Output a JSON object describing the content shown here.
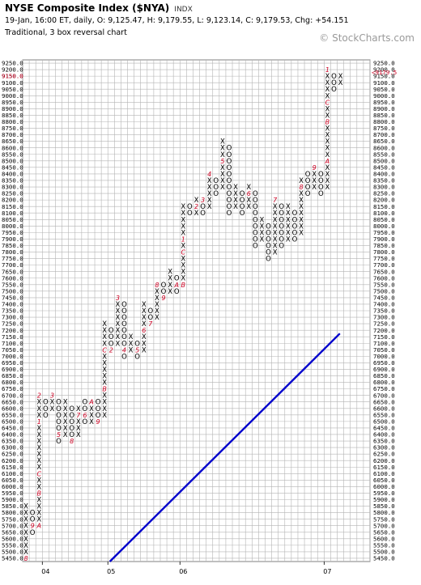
{
  "header": {
    "title": "NYSE Composite Index ($NYA)",
    "ticker": "INDX",
    "quote": "19-Jan, 16:00 ET, daily, O: 9,125.47, H: 9,179.55, L: 9,123.14, C: 9,179.53, Chg: +54.151",
    "chart_type": "Traditional, 3 box reversal chart",
    "brand": "© StockCharts.com"
  },
  "colors": {
    "grid": "#b4b4b4",
    "x_mark": "#000000",
    "o_mark": "#000000",
    "month_mark": "#cc0022",
    "trendline": "#0000cc",
    "last_price": "#cc0022"
  },
  "chart_data": {
    "type": "point-and-figure",
    "box_size": 50,
    "reversal": 3,
    "ylim": [
      5425,
      9275
    ],
    "y_ticks": [
      5450,
      5500,
      5550,
      5600,
      5650,
      5700,
      5750,
      5800,
      5850,
      5900,
      5950,
      6000,
      6050,
      6100,
      6150,
      6200,
      6250,
      6300,
      6350,
      6400,
      6450,
      6500,
      6550,
      6600,
      6650,
      6700,
      6750,
      6800,
      6850,
      6900,
      6950,
      7000,
      7050,
      7100,
      7150,
      7200,
      7250,
      7300,
      7350,
      7400,
      7450,
      7500,
      7550,
      7600,
      7650,
      7700,
      7750,
      7800,
      7850,
      7900,
      7950,
      8000,
      8050,
      8100,
      8150,
      8200,
      8250,
      8300,
      8350,
      8400,
      8450,
      8500,
      8550,
      8600,
      8650,
      8700,
      8750,
      8800,
      8850,
      8900,
      8950,
      9000,
      9050,
      9100,
      9150,
      9200,
      9250
    ],
    "y_tick_labels": [
      "5450.0",
      "5500.0",
      "5550.0",
      "5600.0",
      "5650.0",
      "5700.0",
      "5750.0",
      "5800.0",
      "5850.0",
      "5900.0",
      "5950.0",
      "6000.0",
      "6050.0",
      "6100.0",
      "6150.0",
      "6200.0",
      "6250.0",
      "6300.0",
      "6350.0",
      "6400.0",
      "6450.0",
      "6500.0",
      "6550.0",
      "6600.0",
      "6650.0",
      "6700.0",
      "6750.0",
      "6800.0",
      "6850.0",
      "6900.0",
      "6950.0",
      "7000.0",
      "7050.0",
      "7100.0",
      "7150.0",
      "7200.0",
      "7250.0",
      "7300.0",
      "7350.0",
      "7400.0",
      "7450.0",
      "7500.0",
      "7550.0",
      "7600.0",
      "7650.0",
      "7700.0",
      "7750.0",
      "7800.0",
      "7850.0",
      "7900.0",
      "7950.0",
      "8000.0",
      "8050.0",
      "8100.0",
      "8150.0",
      "8200.0",
      "8250.0",
      "8300.0",
      "8350.0",
      "8400.0",
      "8450.0",
      "8500.0",
      "8550.0",
      "8600.0",
      "8650.0",
      "8700.0",
      "8750.0",
      "8800.0",
      "8850.0",
      "8900.0",
      "8950.0",
      "9000.0",
      "9050.0",
      "9100.0",
      "9150.0",
      "9200.0",
      "9250.0"
    ],
    "x_labels": [
      {
        "label": "04",
        "column": 3
      },
      {
        "label": "05",
        "column": 13
      },
      {
        "label": "06",
        "column": 24
      },
      {
        "label": "07",
        "column": 46
      }
    ],
    "last_price": 9179.5,
    "last_price_label": "<9179.5",
    "left_price_label": "9150.0",
    "columns": [
      {
        "type": "X",
        "from": 5450,
        "to": 5850,
        "months": {
          "5450": "8"
        }
      },
      {
        "type": "O",
        "from": 5650,
        "to": 5800,
        "months": {
          "5700": "9"
        }
      },
      {
        "type": "X",
        "from": 5700,
        "to": 6700,
        "months": {
          "5700": "A",
          "5950": "B",
          "6100": "C",
          "6500": "1",
          "6700": "2"
        }
      },
      {
        "type": "O",
        "from": 6550,
        "to": 6650
      },
      {
        "type": "X",
        "from": 6600,
        "to": 6700,
        "months": {
          "6700": "3"
        }
      },
      {
        "type": "O",
        "from": 6350,
        "to": 6650,
        "months": {
          "6400": "5"
        }
      },
      {
        "type": "X",
        "from": 6400,
        "to": 6650
      },
      {
        "type": "O",
        "from": 6350,
        "to": 6600,
        "months": {
          "6350": "8"
        }
      },
      {
        "type": "X",
        "from": 6400,
        "to": 6600,
        "months": {
          "6550": "7"
        }
      },
      {
        "type": "O",
        "from": 6500,
        "to": 6650,
        "months": {
          "6550": "6"
        }
      },
      {
        "type": "X",
        "from": 6500,
        "to": 6650,
        "months": {
          "6650": "A"
        }
      },
      {
        "type": "O",
        "from": 6500,
        "to": 6650,
        "months": {
          "6500": "9"
        }
      },
      {
        "type": "X",
        "from": 6550,
        "to": 7250,
        "months": {
          "6750": "B",
          "7050": "C"
        }
      },
      {
        "type": "O",
        "from": 7050,
        "to": 7200,
        "months": {
          "7050": "2"
        }
      },
      {
        "type": "X",
        "from": 7100,
        "to": 7450,
        "months": {
          "7450": "3"
        }
      },
      {
        "type": "O",
        "from": 7000,
        "to": 7400,
        "months": {
          "7050": "4"
        }
      },
      {
        "type": "X",
        "from": 7050,
        "to": 7150
      },
      {
        "type": "O",
        "from": 7000,
        "to": 7100,
        "months": {
          "7050": "5"
        }
      },
      {
        "type": "X",
        "from": 7050,
        "to": 7400,
        "months": {
          "7200": "6"
        }
      },
      {
        "type": "O",
        "from": 7250,
        "to": 7350,
        "months": {
          "7250": "7"
        }
      },
      {
        "type": "X",
        "from": 7300,
        "to": 7550,
        "months": {
          "7550": "8"
        }
      },
      {
        "type": "O",
        "from": 7450,
        "to": 7550,
        "months": {
          "7450": "9"
        }
      },
      {
        "type": "X",
        "from": 7500,
        "to": 7650
      },
      {
        "type": "O",
        "from": 7500,
        "to": 7600,
        "months": {
          "7550": "A"
        }
      },
      {
        "type": "X",
        "from": 7550,
        "to": 8150,
        "months": {
          "7550": "B",
          "7800": "C",
          "7900": "1"
        }
      },
      {
        "type": "O",
        "from": 8100,
        "to": 8150
      },
      {
        "type": "X",
        "from": 8100,
        "to": 8200,
        "months": {
          "8150": "2"
        }
      },
      {
        "type": "O",
        "from": 8100,
        "to": 8200,
        "months": {
          "8200": "3"
        }
      },
      {
        "type": "X",
        "from": 8150,
        "to": 8400,
        "months": {
          "8400": "4"
        }
      },
      {
        "type": "O",
        "from": 8250,
        "to": 8350
      },
      {
        "type": "X",
        "from": 8300,
        "to": 8650,
        "months": {
          "8500": "5"
        }
      },
      {
        "type": "O",
        "from": 8100,
        "to": 8600
      },
      {
        "type": "X",
        "from": 8150,
        "to": 8300
      },
      {
        "type": "O",
        "from": 8100,
        "to": 8250
      },
      {
        "type": "X",
        "from": 8150,
        "to": 8300,
        "months": {
          "8250": "6"
        }
      },
      {
        "type": "O",
        "from": 7850,
        "to": 8250
      },
      {
        "type": "X",
        "from": 7900,
        "to": 8050
      },
      {
        "type": "O",
        "from": 7750,
        "to": 8000
      },
      {
        "type": "X",
        "from": 7800,
        "to": 8200,
        "months": {
          "8200": "7"
        }
      },
      {
        "type": "O",
        "from": 7850,
        "to": 8150
      },
      {
        "type": "X",
        "from": 7900,
        "to": 8150
      },
      {
        "type": "O",
        "from": 7900,
        "to": 8100
      },
      {
        "type": "X",
        "from": 7950,
        "to": 8350,
        "months": {
          "8300": "8"
        }
      },
      {
        "type": "O",
        "from": 8250,
        "to": 8400
      },
      {
        "type": "X",
        "from": 8300,
        "to": 8450,
        "months": {
          "8450": "9"
        }
      },
      {
        "type": "O",
        "from": 8250,
        "to": 8400
      },
      {
        "type": "X",
        "from": 8300,
        "to": 9200,
        "months": {
          "8500": "A",
          "8800": "B",
          "8950": "C",
          "9200": "1"
        }
      },
      {
        "type": "O",
        "from": 9050,
        "to": 9150
      },
      {
        "type": "X",
        "from": 9100,
        "to": 9150
      }
    ],
    "trendline": {
      "start": {
        "column": 13.3,
        "price": 5425
      },
      "end": {
        "column": 48.4,
        "price": 7175
      }
    }
  }
}
